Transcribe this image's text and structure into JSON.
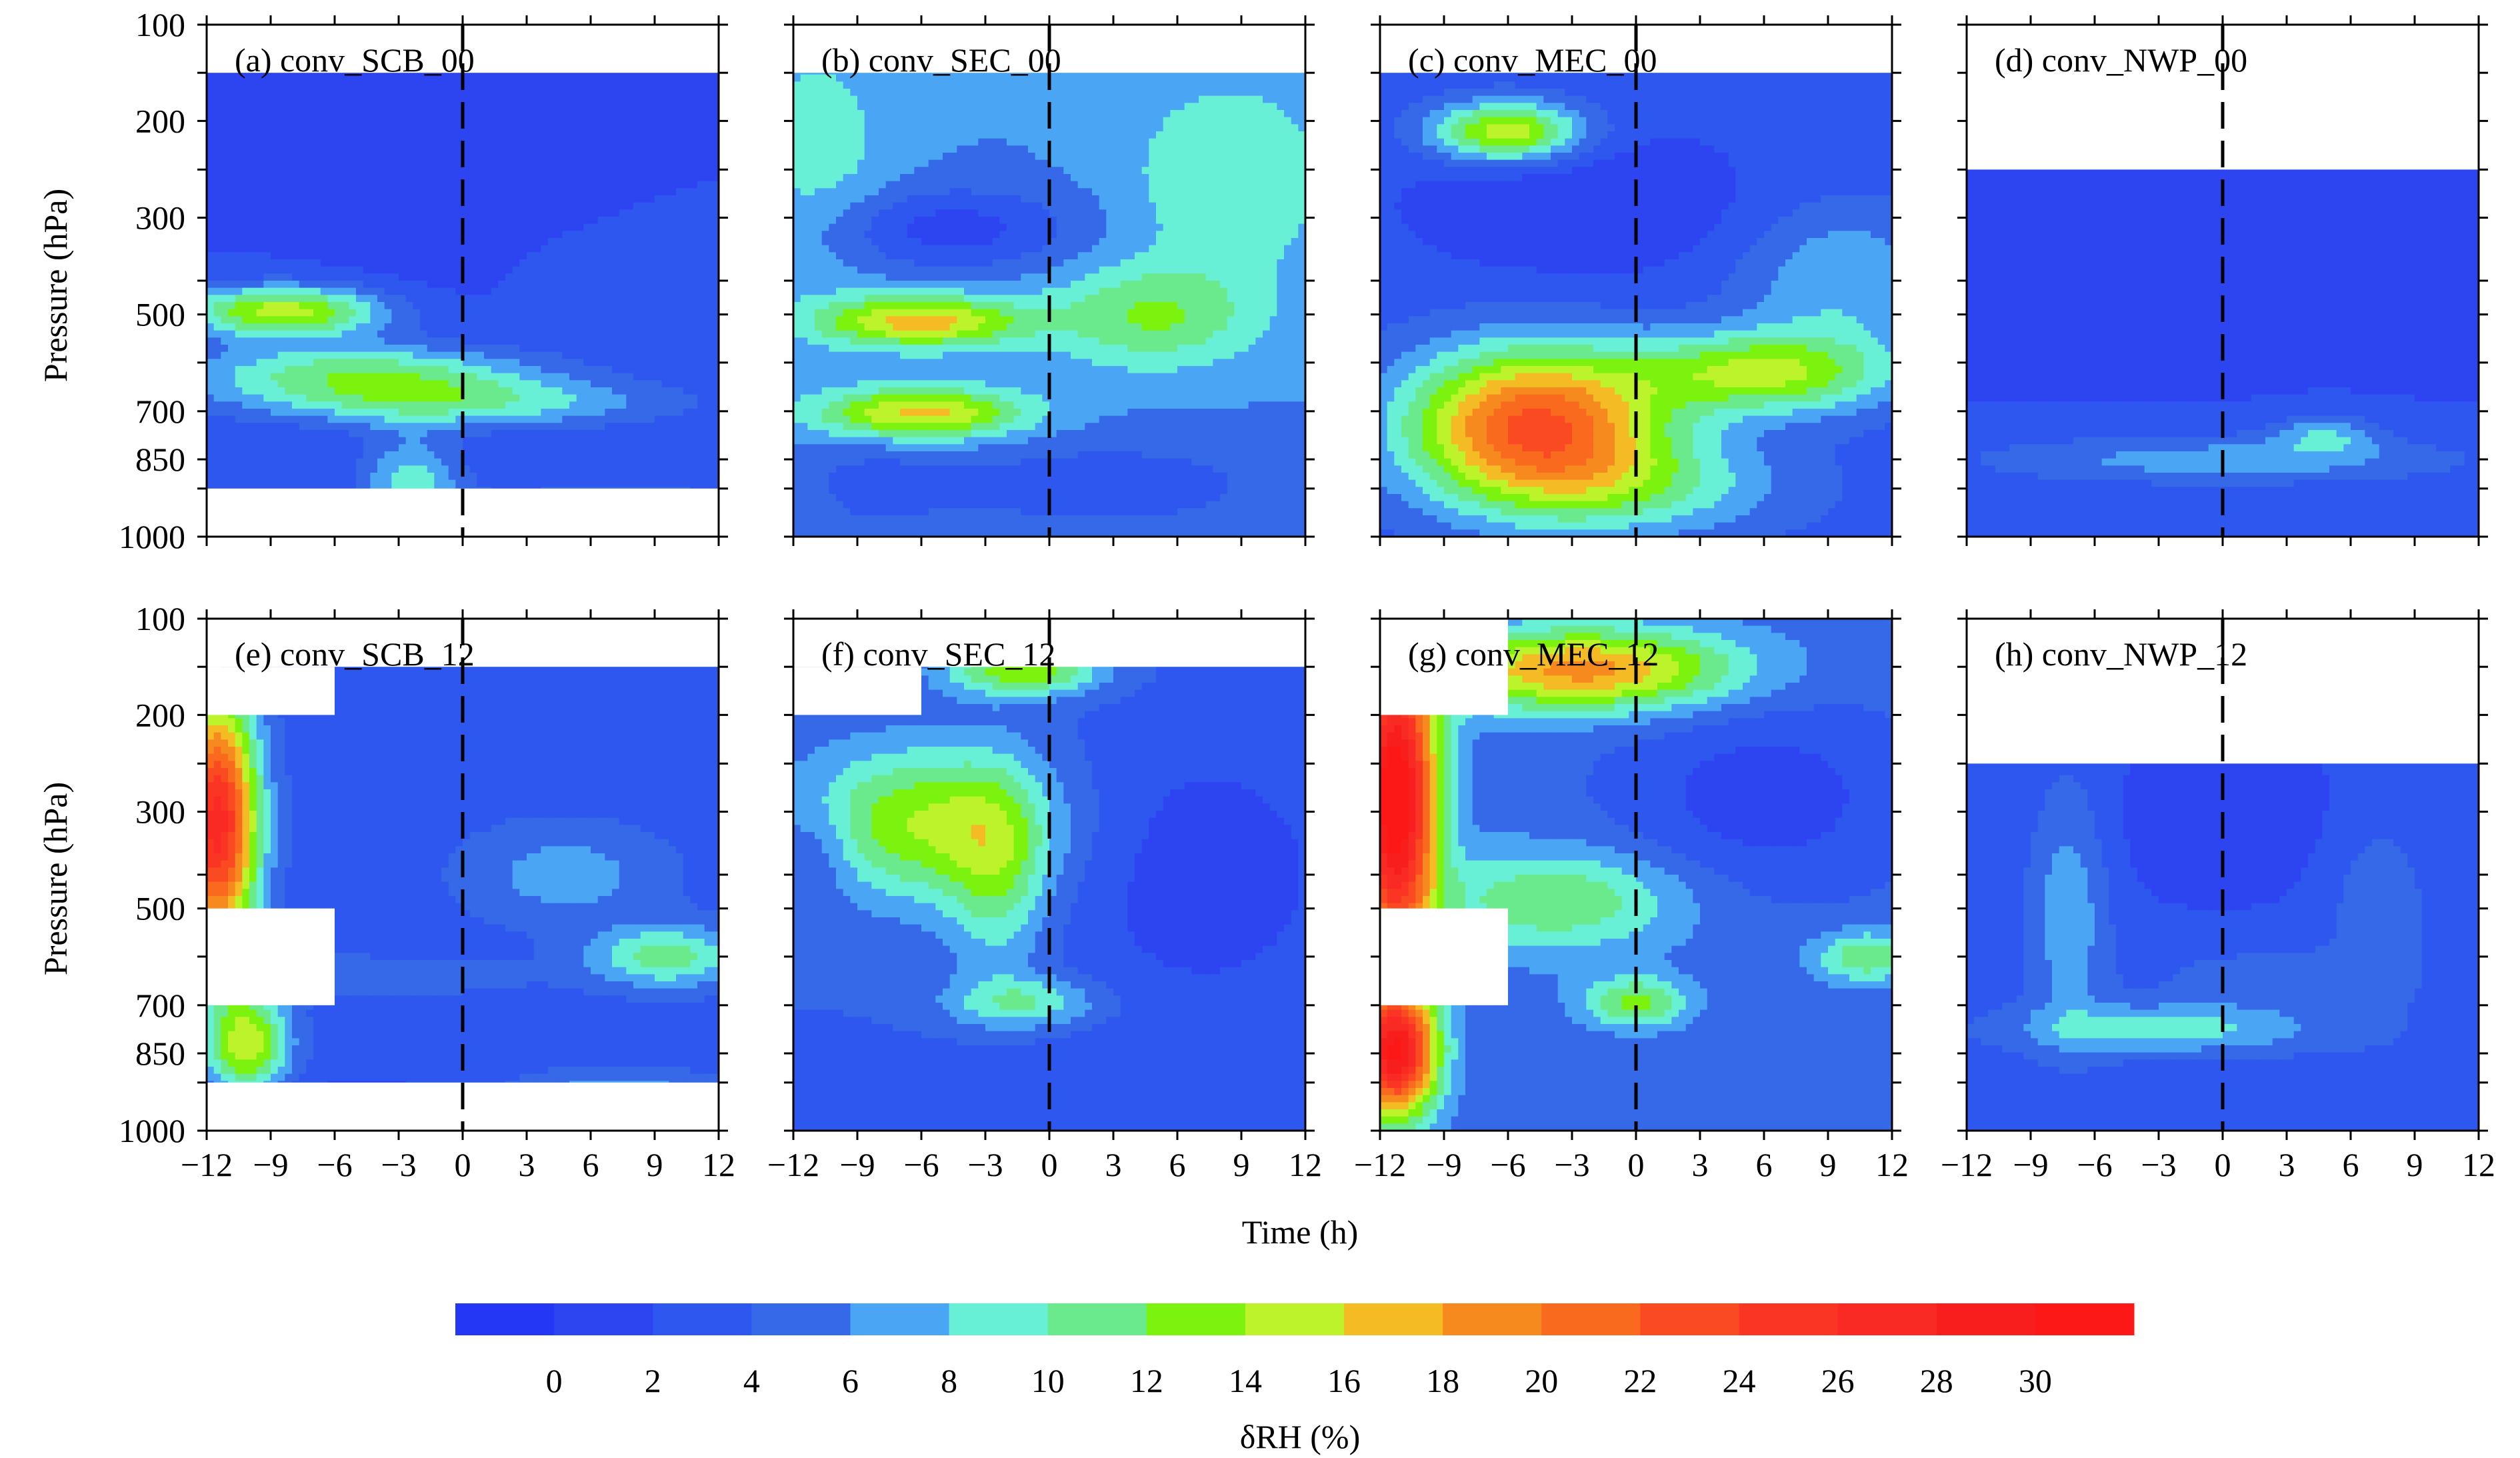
{
  "chart_data": {
    "type": "contour",
    "xlabel": "Time (h)",
    "ylabel": "Pressure (hPa)",
    "x_ticks": [
      "−12",
      "−9",
      "−6",
      "−3",
      "0",
      "3",
      "6",
      "9",
      "12"
    ],
    "x_values": [
      -12,
      -9,
      -6,
      -3,
      0,
      3,
      6,
      9,
      12
    ],
    "y_tick_labels": [
      "100",
      "200",
      "300",
      "500",
      "700",
      "850",
      "1000"
    ],
    "y_levels": [
      100,
      150,
      200,
      250,
      300,
      400,
      500,
      600,
      700,
      850,
      925,
      1000
    ],
    "xlim": [
      -12,
      12
    ],
    "reference_line_x": 0,
    "colorbar": {
      "label": "δRH (%)",
      "tick_labels": [
        "0",
        "2",
        "4",
        "6",
        "8",
        "10",
        "12",
        "14",
        "16",
        "18",
        "20",
        "22",
        "24",
        "26",
        "28",
        "30"
      ],
      "levels": [
        -2,
        0,
        2,
        4,
        6,
        8,
        10,
        12,
        14,
        16,
        18,
        20,
        22,
        24,
        26,
        28,
        30,
        32
      ],
      "colors": [
        "#2437f5",
        "#2c45f0",
        "#2e57ef",
        "#3569e8",
        "#4aa6f4",
        "#68f0d6",
        "#6be98d",
        "#7cf20f",
        "#bdf32b",
        "#f5bb25",
        "#f78a1e",
        "#fa6a1e",
        "#fa4a22",
        "#fa3524",
        "#f92924",
        "#f81e1e",
        "#fb1816"
      ]
    },
    "panels": [
      {
        "title": "(a) conv_SCB_00",
        "missing": [
          [
            100,
            150,
            -12,
            12
          ],
          [
            925,
            1000,
            -12,
            12
          ]
        ]
      },
      {
        "title": "(b) conv_SEC_00",
        "missing": [
          [
            100,
            150,
            -12,
            12
          ]
        ]
      },
      {
        "title": "(c) conv_MEC_00",
        "missing": [
          [
            100,
            150,
            -12,
            12
          ]
        ]
      },
      {
        "title": "(d) conv_NWP_00",
        "missing": [
          [
            100,
            250,
            -12,
            12
          ]
        ]
      },
      {
        "title": "(e) conv_SCB_12",
        "missing": [
          [
            100,
            150,
            -12,
            12
          ],
          [
            150,
            200,
            -12,
            -6
          ],
          [
            500,
            700,
            -12,
            -6
          ],
          [
            925,
            1000,
            -12,
            12
          ]
        ]
      },
      {
        "title": "(f) conv_SEC_12",
        "missing": [
          [
            100,
            150,
            -12,
            12
          ],
          [
            150,
            200,
            -12,
            -6
          ]
        ]
      },
      {
        "title": "(g) conv_MEC_12",
        "missing": [
          [
            100,
            200,
            -12,
            -6
          ],
          [
            500,
            700,
            -12,
            -6
          ]
        ]
      },
      {
        "title": "(h) conv_NWP_12",
        "missing": [
          [
            100,
            250,
            -12,
            12
          ]
        ]
      }
    ]
  }
}
